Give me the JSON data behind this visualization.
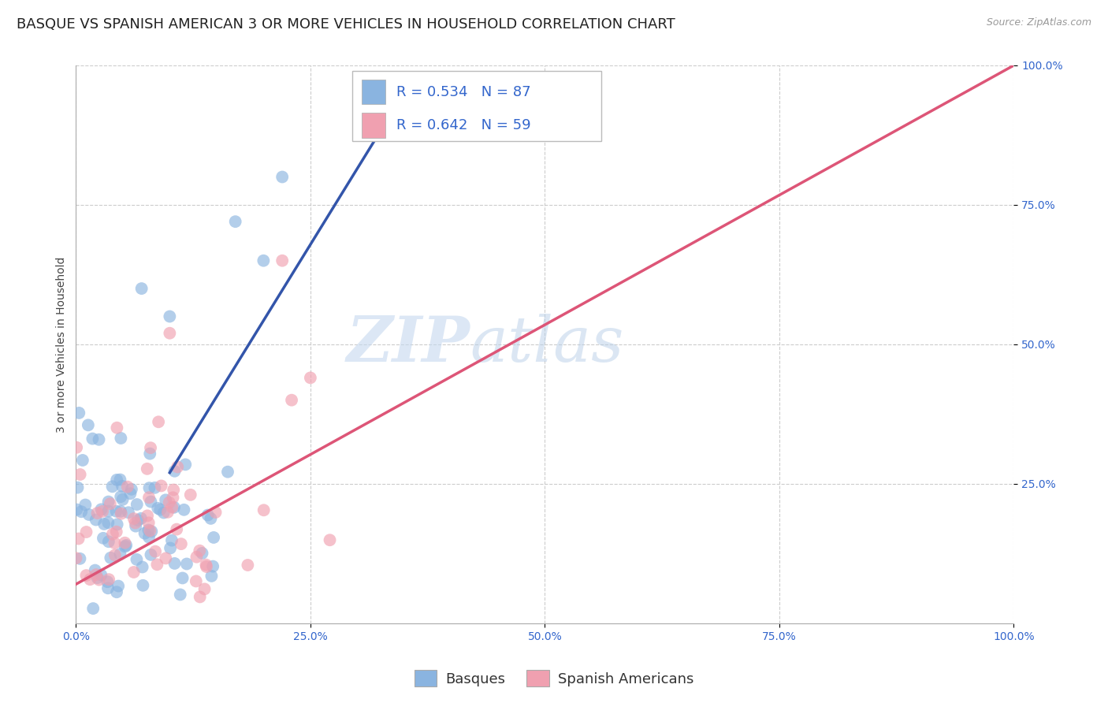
{
  "title": "BASQUE VS SPANISH AMERICAN 3 OR MORE VEHICLES IN HOUSEHOLD CORRELATION CHART",
  "source": "Source: ZipAtlas.com",
  "ylabel": "3 or more Vehicles in Household",
  "xlim": [
    0.0,
    1.0
  ],
  "ylim": [
    0.0,
    1.0
  ],
  "x_ticks": [
    0.0,
    0.25,
    0.5,
    0.75,
    1.0
  ],
  "x_tick_labels": [
    "0.0%",
    "25.0%",
    "50.0%",
    "75.0%",
    "100.0%"
  ],
  "y_ticks": [
    0.25,
    0.5,
    0.75,
    1.0
  ],
  "y_tick_labels": [
    "25.0%",
    "50.0%",
    "75.0%",
    "100.0%"
  ],
  "basque_color": "#8ab4e0",
  "spanish_color": "#f0a0b0",
  "basque_line_color": "#3355aa",
  "spanish_line_color": "#dd5577",
  "R_basque": 0.534,
  "N_basque": 87,
  "R_spanish": 0.642,
  "N_spanish": 59,
  "legend_labels": [
    "Basques",
    "Spanish Americans"
  ],
  "watermark_zip": "ZIP",
  "watermark_atlas": "atlas",
  "background_color": "#ffffff",
  "grid_color": "#cccccc",
  "title_fontsize": 13,
  "axis_label_fontsize": 10,
  "tick_fontsize": 10,
  "legend_fontsize": 13,
  "basque_seed": 42,
  "spanish_seed": 17,
  "basque_line_x0": 0.1,
  "basque_line_y0": 0.27,
  "basque_line_x1": 0.355,
  "basque_line_y1": 0.965,
  "spanish_line_x0": 0.0,
  "spanish_line_y0": 0.07,
  "spanish_line_x1": 1.0,
  "spanish_line_y1": 1.0
}
